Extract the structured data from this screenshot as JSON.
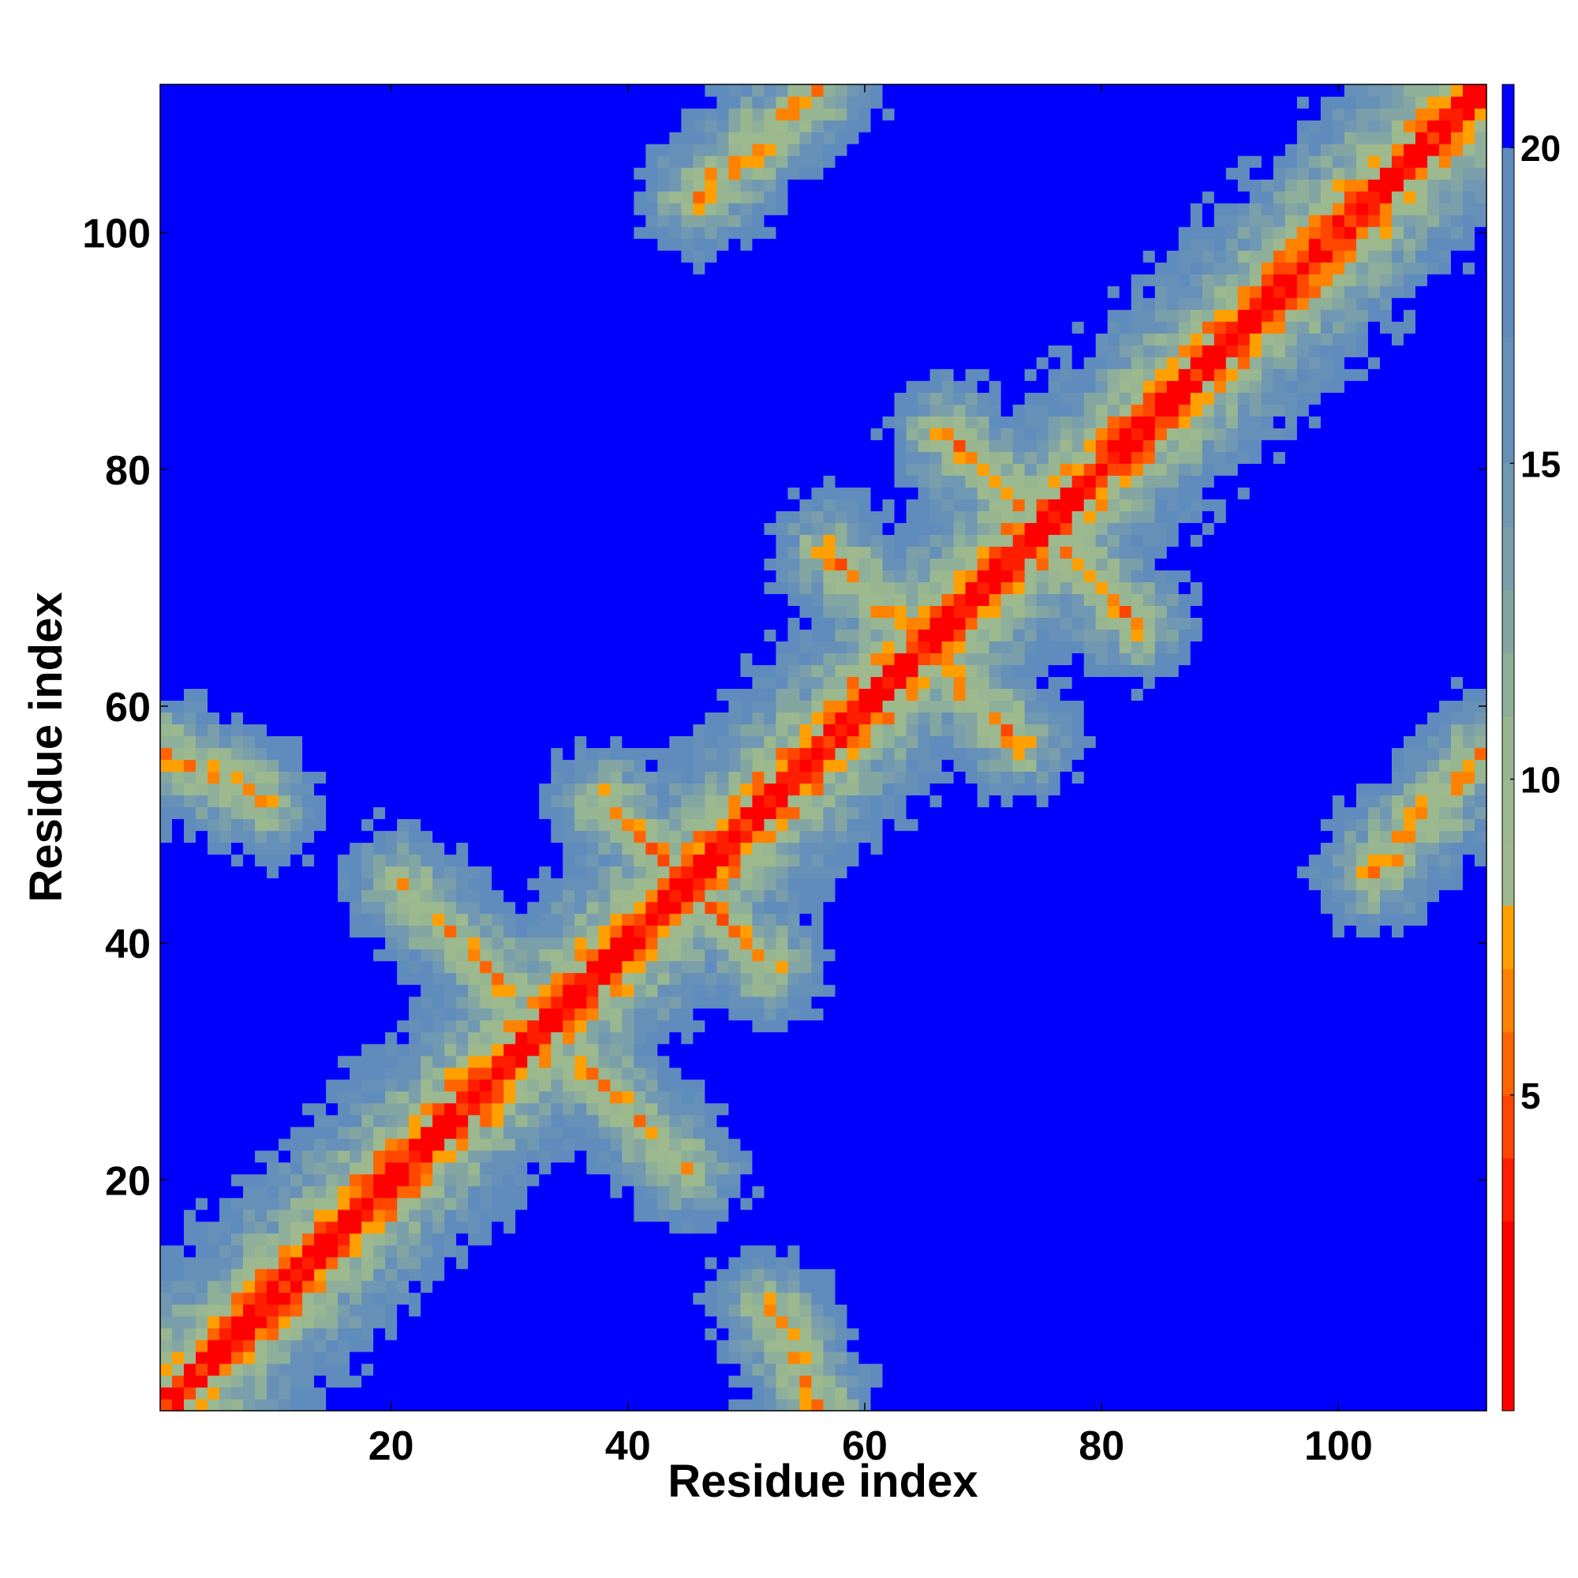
{
  "chart_data": {
    "type": "heatmap",
    "title": "",
    "xlabel": "Residue index",
    "ylabel": "Residue index",
    "x_range": [
      1,
      112
    ],
    "y_range": [
      1,
      112
    ],
    "xticks": [
      20,
      40,
      60,
      80,
      100
    ],
    "yticks": [
      20,
      40,
      60,
      80,
      100
    ],
    "colorbar": {
      "ticks": [
        5,
        10,
        15,
        20
      ],
      "range": [
        0,
        21
      ],
      "bands": [
        {
          "from": 0,
          "to": 3.0,
          "color": "#ff0000"
        },
        {
          "from": 3.0,
          "to": 4.0,
          "color": "#ff1e00"
        },
        {
          "from": 4.0,
          "to": 5.0,
          "color": "#ff4600"
        },
        {
          "from": 5.0,
          "to": 6.0,
          "color": "#ff6400"
        },
        {
          "from": 6.0,
          "to": 7.0,
          "color": "#ff8200"
        },
        {
          "from": 7.0,
          "to": 8.0,
          "color": "#ffa000"
        },
        {
          "from": 8.0,
          "to": 9.0,
          "color": "#9eb98d"
        },
        {
          "from": 9.0,
          "to": 10.0,
          "color": "#9bb88e"
        },
        {
          "from": 10.0,
          "to": 11.0,
          "color": "#97b691"
        },
        {
          "from": 11.0,
          "to": 12.0,
          "color": "#8eaf99"
        },
        {
          "from": 12.0,
          "to": 13.0,
          "color": "#84a6a2"
        },
        {
          "from": 13.0,
          "to": 14.0,
          "color": "#7a9fab"
        },
        {
          "from": 14.0,
          "to": 15.0,
          "color": "#7098b2"
        },
        {
          "from": 15.0,
          "to": 17.0,
          "color": "#6690b8"
        },
        {
          "from": 17.0,
          "to": 20.0,
          "color": "#5f8cbc"
        },
        {
          "from": 20.0,
          "to": 21.0,
          "color": "#0000ff"
        }
      ]
    },
    "description_values": {
      "diagonal_value": 2,
      "far_value": 21,
      "secondary_structure_contacts": [
        {
          "a": [
            38,
            52
          ],
          "b": [
            50,
            40
          ],
          "value": 7
        },
        {
          "a": [
            21,
            45
          ],
          "b": [
            30,
            36
          ],
          "value": 7
        },
        {
          "a": [
            33,
            32
          ],
          "b": [
            44,
            20
          ],
          "value": 7
        },
        {
          "a": [
            57,
            73
          ],
          "b": [
            66,
            64
          ],
          "value": 7
        },
        {
          "a": [
            66,
            63
          ],
          "b": [
            73,
            56
          ],
          "value": 7
        },
        {
          "a": [
            67,
            83
          ],
          "b": [
            77,
            73
          ],
          "value": 7
        },
        {
          "a": [
            47,
            45
          ],
          "b": [
            53,
            39
          ],
          "value": 7
        },
        {
          "a": [
            46,
            103
          ],
          "b": [
            56,
            112
          ],
          "value": 7
        },
        {
          "a": [
            97,
            47
          ],
          "b": [
            110,
            56
          ],
          "value": 7
        },
        {
          "a": [
            1,
            56
          ],
          "b": [
            9,
            52
          ],
          "value": 7
        }
      ]
    }
  }
}
